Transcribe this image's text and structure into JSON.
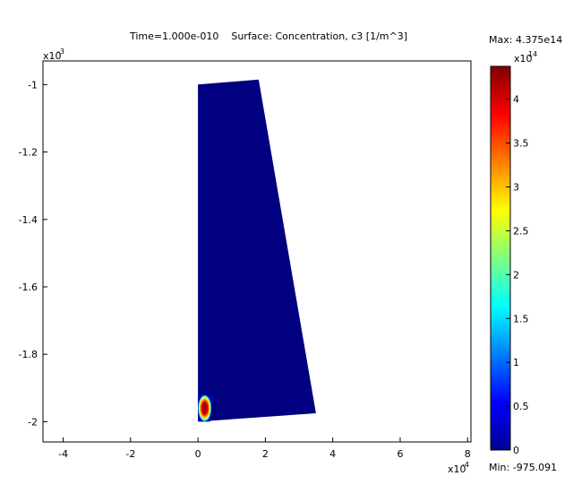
{
  "title": "Time=1.000e-010    Surface: Concentration, c3 [1/m^3]",
  "colorbar": {
    "max_label": "Max: 4.375e14",
    "min_label": "Min: -975.091",
    "multiplier_base": "x10",
    "multiplier_exp": "14",
    "ticks": [
      "0",
      "0.5",
      "1",
      "1.5",
      "2",
      "2.5",
      "3",
      "3.5",
      "4"
    ],
    "range": [
      0,
      4.375
    ]
  },
  "chart_data": {
    "type": "heatmap",
    "title": "Time=1.000e-010    Surface: Concentration, c3 [1/m^3]",
    "xlabel": "",
    "ylabel": "",
    "x_multiplier": {
      "base": "x10",
      "exp": "-4"
    },
    "y_multiplier": {
      "base": "x10",
      "exp": "-3"
    },
    "xlim": [
      -4.6,
      8.1
    ],
    "ylim": [
      -2.06,
      -0.93
    ],
    "x_ticks": [
      -4,
      -2,
      0,
      2,
      4,
      6,
      8
    ],
    "x_tick_labels": [
      "-4",
      "-2",
      "0",
      "2",
      "4",
      "6",
      "8"
    ],
    "y_ticks": [
      -1,
      -1.2,
      -1.4,
      -1.6,
      -1.8,
      -2
    ],
    "y_tick_labels": [
      "-1",
      "-1.2",
      "-1.4",
      "-1.6",
      "-1.8",
      "-2"
    ],
    "domain_polygon": [
      [
        0,
        -1.0
      ],
      [
        1.8,
        -0.985
      ],
      [
        3.5,
        -1.975
      ],
      [
        0,
        -2.0
      ]
    ],
    "domain_value_color": "#000080",
    "hotspot": {
      "x": [
        0.0,
        0.4
      ],
      "y": [
        -2.0,
        -1.92
      ],
      "peak_value": 4.375
    },
    "grid": false
  }
}
